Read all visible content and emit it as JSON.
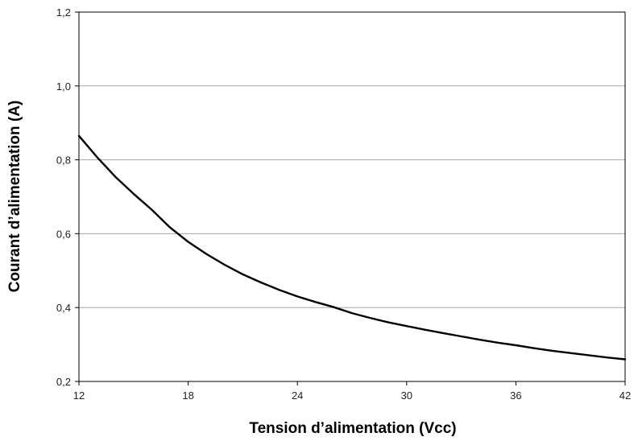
{
  "chart_data": {
    "type": "line",
    "title": "",
    "xlabel": "Tension d’alimentation (Vcc)",
    "ylabel": "Courant d’alimentation (A)",
    "xlim": [
      12,
      42
    ],
    "ylim": [
      0.2,
      1.2
    ],
    "x_ticks": [
      "12",
      "18",
      "24",
      "30",
      "36",
      "42"
    ],
    "y_ticks": [
      "0,2",
      "0,4",
      "0,6",
      "0,8",
      "1,0",
      "1,2"
    ],
    "grid": "horizontal",
    "line_color": "#000000",
    "grid_color": "#a6a6a6",
    "series": [
      {
        "x": [
          12,
          13,
          14,
          15,
          16,
          17,
          18,
          19,
          20,
          21,
          22,
          23,
          24,
          25,
          26,
          27,
          28,
          29,
          30,
          31,
          32,
          33,
          34,
          35,
          36,
          37,
          38,
          39,
          40,
          41,
          42
        ],
        "values": [
          0.865,
          0.807,
          0.754,
          0.708,
          0.665,
          0.617,
          0.578,
          0.545,
          0.516,
          0.49,
          0.468,
          0.448,
          0.43,
          0.415,
          0.401,
          0.385,
          0.372,
          0.36,
          0.35,
          0.34,
          0.331,
          0.322,
          0.313,
          0.305,
          0.298,
          0.29,
          0.283,
          0.277,
          0.271,
          0.265,
          0.26
        ]
      }
    ]
  }
}
